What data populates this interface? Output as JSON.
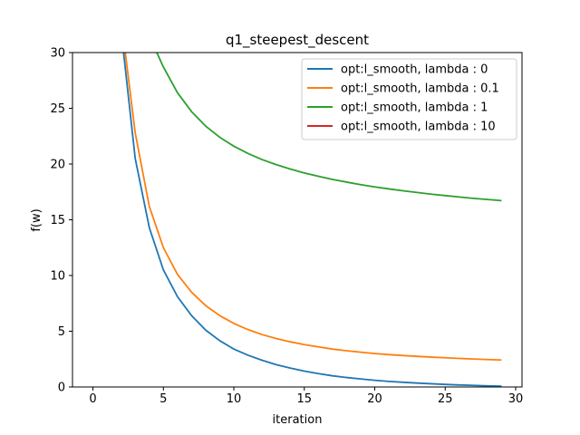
{
  "chart_data": {
    "type": "line",
    "title": "q1_steepest_descent",
    "xlabel": "iteration",
    "ylabel": "f(w)",
    "xlim": [
      -1.45,
      30.45
    ],
    "ylim": [
      0,
      30
    ],
    "xticks": [
      0,
      5,
      10,
      15,
      20,
      25,
      30
    ],
    "yticks": [
      0,
      5,
      10,
      15,
      20,
      25,
      30
    ],
    "grid": false,
    "legend_position": "top-right",
    "series": [
      {
        "name": "opt:l_smooth, lambda : 0",
        "color": "#1f77b4",
        "x": [
          2,
          3,
          4,
          5,
          6,
          7,
          8,
          9,
          10,
          11,
          12,
          13,
          14,
          15,
          16,
          17,
          18,
          19,
          20,
          21,
          22,
          23,
          24,
          25,
          26,
          27,
          28,
          29
        ],
        "y": [
          32.0,
          20.5,
          14.3,
          10.5,
          8.1,
          6.4,
          5.1,
          4.15,
          3.4,
          2.85,
          2.4,
          2.0,
          1.7,
          1.42,
          1.2,
          1.0,
          0.85,
          0.72,
          0.6,
          0.5,
          0.42,
          0.35,
          0.29,
          0.23,
          0.18,
          0.14,
          0.1,
          0.07
        ]
      },
      {
        "name": "opt:l_smooth, lambda : 0.1",
        "color": "#ff7f0e",
        "x": [
          2,
          3,
          4,
          5,
          6,
          7,
          8,
          9,
          10,
          11,
          12,
          13,
          14,
          15,
          16,
          17,
          18,
          19,
          20,
          21,
          22,
          23,
          24,
          25,
          26,
          27,
          28,
          29
        ],
        "y": [
          33.0,
          22.8,
          16.2,
          12.5,
          10.1,
          8.5,
          7.3,
          6.4,
          5.7,
          5.15,
          4.7,
          4.35,
          4.05,
          3.8,
          3.6,
          3.4,
          3.25,
          3.12,
          3.0,
          2.9,
          2.82,
          2.75,
          2.68,
          2.62,
          2.56,
          2.51,
          2.46,
          2.42
        ]
      },
      {
        "name": "opt:l_smooth, lambda : 1",
        "color": "#2ca02c",
        "x": [
          4,
          5,
          6,
          7,
          8,
          9,
          10,
          11,
          12,
          13,
          14,
          15,
          16,
          17,
          18,
          19,
          20,
          21,
          22,
          23,
          24,
          25,
          26,
          27,
          28,
          29
        ],
        "y": [
          31.5,
          28.7,
          26.4,
          24.7,
          23.4,
          22.4,
          21.6,
          20.95,
          20.4,
          19.95,
          19.55,
          19.2,
          18.9,
          18.62,
          18.38,
          18.15,
          17.95,
          17.77,
          17.6,
          17.45,
          17.3,
          17.17,
          17.04,
          16.92,
          16.82,
          16.72
        ]
      },
      {
        "name": "opt:l_smooth, lambda : 10",
        "color": "#d62728",
        "x": [],
        "y": []
      }
    ]
  }
}
